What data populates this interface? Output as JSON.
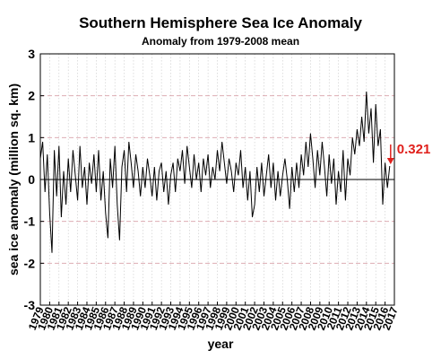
{
  "chart_data": {
    "type": "line",
    "title": "Southern Hemisphere Sea Ice Anomaly",
    "subtitle": "Anomaly from 1979-2008 mean",
    "xlabel": "year",
    "ylabel": "sea ice anomaly (million sq. km)",
    "xlim": [
      1979,
      2017
    ],
    "ylim": [
      -3,
      3
    ],
    "yticks": [
      "-3",
      "-2",
      "-1",
      "0",
      "1",
      "2",
      "3"
    ],
    "xticks": [
      "1979",
      "1980",
      "1981",
      "1982",
      "1983",
      "1984",
      "1985",
      "1986",
      "1987",
      "1988",
      "1989",
      "1990",
      "1991",
      "1992",
      "1993",
      "1994",
      "1995",
      "1996",
      "1997",
      "1998",
      "1999",
      "2000",
      "2001",
      "2002",
      "2003",
      "2004",
      "2005",
      "2006",
      "2007",
      "2008",
      "2009",
      "2010",
      "2011",
      "2012",
      "2013",
      "2014",
      "2015",
      "2016",
      "2017"
    ],
    "grid": true,
    "series": [
      {
        "color": "#000000",
        "x": [
          1979.0,
          1979.25,
          1979.5,
          1979.75,
          1980.0,
          1980.25,
          1980.5,
          1980.75,
          1981.0,
          1981.25,
          1981.5,
          1981.75,
          1982.0,
          1982.25,
          1982.5,
          1982.75,
          1983.0,
          1983.25,
          1983.5,
          1983.75,
          1984.0,
          1984.25,
          1984.5,
          1984.75,
          1985.0,
          1985.25,
          1985.5,
          1985.75,
          1986.0,
          1986.25,
          1986.5,
          1986.75,
          1987.0,
          1987.25,
          1987.5,
          1987.75,
          1988.0,
          1988.25,
          1988.5,
          1988.75,
          1989.0,
          1989.25,
          1989.5,
          1989.75,
          1990.0,
          1990.25,
          1990.5,
          1990.75,
          1991.0,
          1991.25,
          1991.5,
          1991.75,
          1992.0,
          1992.25,
          1992.5,
          1992.75,
          1993.0,
          1993.25,
          1993.5,
          1993.75,
          1994.0,
          1994.25,
          1994.5,
          1994.75,
          1995.0,
          1995.25,
          1995.5,
          1995.75,
          1996.0,
          1996.25,
          1996.5,
          1996.75,
          1997.0,
          1997.25,
          1997.5,
          1997.75,
          1998.0,
          1998.25,
          1998.5,
          1998.75,
          1999.0,
          1999.25,
          1999.5,
          1999.75,
          2000.0,
          2000.25,
          2000.5,
          2000.75,
          2001.0,
          2001.25,
          2001.5,
          2001.75,
          2002.0,
          2002.25,
          2002.5,
          2002.75,
          2003.0,
          2003.25,
          2003.5,
          2003.75,
          2004.0,
          2004.25,
          2004.5,
          2004.75,
          2005.0,
          2005.25,
          2005.5,
          2005.75,
          2006.0,
          2006.25,
          2006.5,
          2006.75,
          2007.0,
          2007.25,
          2007.5,
          2007.75,
          2008.0,
          2008.25,
          2008.5,
          2008.75,
          2009.0,
          2009.25,
          2009.5,
          2009.75,
          2010.0,
          2010.25,
          2010.5,
          2010.75,
          2011.0,
          2011.25,
          2011.5,
          2011.75,
          2012.0,
          2012.25,
          2012.5,
          2012.75,
          2013.0,
          2013.25,
          2013.5,
          2013.75,
          2014.0,
          2014.25,
          2014.5,
          2014.75,
          2015.0,
          2015.25,
          2015.5,
          2015.75,
          2016.0,
          2016.25,
          2016.5
        ],
        "y": [
          0.5,
          0.9,
          -0.3,
          0.6,
          -0.8,
          -1.75,
          0.7,
          -0.4,
          0.8,
          -0.9,
          0.2,
          -0.6,
          0.5,
          -0.3,
          0.7,
          0.1,
          -0.5,
          0.8,
          -0.2,
          0.3,
          -0.6,
          0.4,
          -0.1,
          0.6,
          -0.3,
          0.7,
          -0.5,
          0.2,
          -0.8,
          -1.4,
          0.5,
          -0.2,
          0.8,
          -0.6,
          -1.45,
          0.3,
          0.7,
          -0.3,
          0.9,
          0.4,
          -0.2,
          0.6,
          0.2,
          -0.4,
          0.3,
          -0.2,
          0.5,
          0.1,
          -0.4,
          0.3,
          -0.5,
          0.2,
          0.4,
          -0.3,
          0.2,
          -0.6,
          0.1,
          0.4,
          -0.3,
          0.5,
          0.2,
          0.7,
          -0.1,
          0.8,
          0.3,
          -0.2,
          0.6,
          0.0,
          0.4,
          -0.3,
          0.5,
          0.1,
          0.6,
          -0.2,
          0.3,
          0.0,
          0.7,
          0.2,
          0.9,
          0.4,
          -0.1,
          0.5,
          0.2,
          -0.3,
          0.4,
          0.1,
          0.7,
          -0.2,
          0.3,
          -0.5,
          0.2,
          -0.9,
          -0.6,
          0.3,
          -0.3,
          0.4,
          -0.4,
          0.1,
          0.6,
          -0.2,
          0.4,
          -0.5,
          0.2,
          -0.4,
          0.1,
          0.5,
          0.0,
          -0.7,
          0.3,
          -0.3,
          0.4,
          -0.2,
          0.6,
          0.1,
          0.9,
          0.3,
          1.1,
          0.5,
          -0.2,
          0.7,
          0.1,
          0.9,
          0.3,
          -0.4,
          0.6,
          -0.1,
          0.5,
          -0.6,
          0.2,
          -0.3,
          0.7,
          -0.5,
          0.5,
          0.1,
          1.0,
          0.6,
          1.2,
          0.8,
          1.5,
          0.9,
          2.1,
          1.1,
          1.7,
          0.4,
          1.8,
          0.8,
          1.2,
          -0.6,
          0.4,
          -0.2,
          0.321
        ]
      }
    ],
    "annotation": {
      "text": "0.321",
      "color": "#e0201c",
      "x": 2016.5,
      "y": 0.321
    }
  }
}
